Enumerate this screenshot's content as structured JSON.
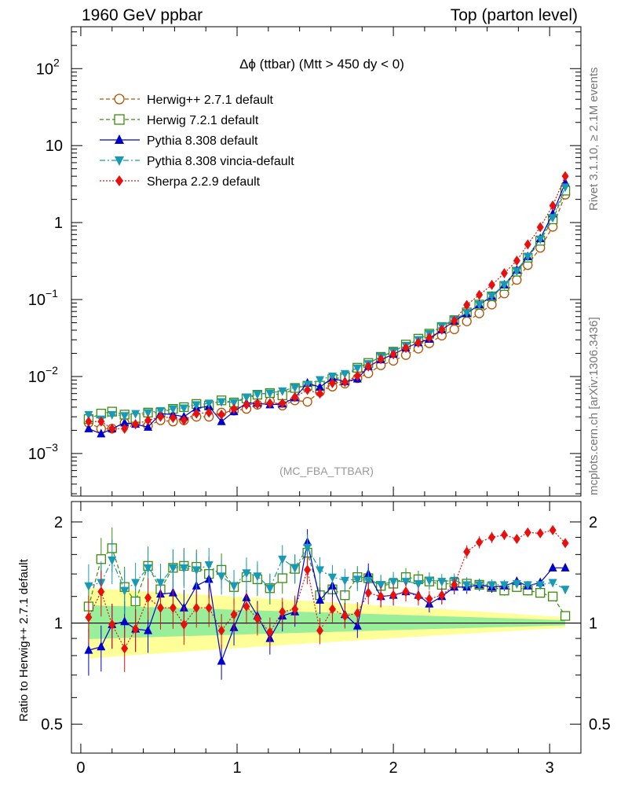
{
  "header": {
    "left": "1960 GeV ppbar",
    "right": "Top (parton level)"
  },
  "side_labels": {
    "rivet": "Rivet 3.1.10, ≥ 2.1M events",
    "mcplots": "mcplots.cern.ch [arXiv:1306.3436]"
  },
  "chart_data": [
    {
      "type": "scatter",
      "title": "Δϕ (ttbar) (Mtt > 450 dy < 0)",
      "watermark": "(MC_FBA_TTBAR)",
      "yscale": "log",
      "xlim": [
        -0.06,
        3.2
      ],
      "ylim": [
        0.00028,
        350
      ],
      "x_ticks": [
        0,
        1,
        2,
        3
      ],
      "y_ticks": [
        {
          "value": 0.001,
          "label": "10",
          "exp": "−3"
        },
        {
          "value": 0.01,
          "label": "10",
          "exp": "−2"
        },
        {
          "value": 0.1,
          "label": "10",
          "exp": "−1"
        },
        {
          "value": 1,
          "label": "1",
          "exp": ""
        },
        {
          "value": 10,
          "label": "10",
          "exp": ""
        },
        {
          "value": 100,
          "label": "10",
          "exp": "2"
        }
      ],
      "legend_position": "top-left",
      "x": [
        0.05,
        0.13,
        0.2,
        0.28,
        0.35,
        0.43,
        0.51,
        0.59,
        0.66,
        0.74,
        0.82,
        0.9,
        0.98,
        1.06,
        1.13,
        1.21,
        1.29,
        1.37,
        1.45,
        1.53,
        1.61,
        1.69,
        1.77,
        1.84,
        1.92,
        2.0,
        2.08,
        2.16,
        2.23,
        2.31,
        2.39,
        2.47,
        2.55,
        2.63,
        2.71,
        2.79,
        2.86,
        2.94,
        3.02,
        3.1
      ],
      "series": [
        {
          "name": "Herwig++ 2.7.1 default",
          "color": "#b35000",
          "marker": "circle-open",
          "line": "dashed",
          "values": [
            0.0025,
            0.0021,
            0.0021,
            0.0025,
            0.0025,
            0.0023,
            0.0027,
            0.0026,
            0.0027,
            0.003,
            0.003,
            0.0034,
            0.0036,
            0.0038,
            0.0043,
            0.0048,
            0.0042,
            0.0049,
            0.0047,
            0.0063,
            0.0074,
            0.0081,
            0.0095,
            0.011,
            0.014,
            0.016,
            0.019,
            0.023,
            0.027,
            0.034,
            0.041,
            0.052,
            0.066,
            0.086,
            0.12,
            0.18,
            0.28,
            0.47,
            0.88,
            2.3
          ]
        },
        {
          "name": "Herwig 7.2.1 default",
          "color": "#3c8c0c",
          "marker": "square-open",
          "line": "dashed",
          "values": [
            0.0028,
            0.0033,
            0.0035,
            0.0032,
            0.0029,
            0.0034,
            0.0034,
            0.0038,
            0.004,
            0.0044,
            0.0042,
            0.0049,
            0.0046,
            0.0052,
            0.0058,
            0.0061,
            0.0057,
            0.0071,
            0.0076,
            0.0076,
            0.0093,
            0.0098,
            0.013,
            0.015,
            0.018,
            0.021,
            0.026,
            0.031,
            0.036,
            0.044,
            0.054,
            0.068,
            0.086,
            0.11,
            0.15,
            0.23,
            0.35,
            0.58,
            1.1,
            2.6
          ]
        },
        {
          "name": "Pythia 8.308 default",
          "color": "#0000cc",
          "marker": "triangle-up",
          "line": "solid",
          "values": [
            0.0021,
            0.0018,
            0.0021,
            0.0025,
            0.0024,
            0.0022,
            0.0033,
            0.0032,
            0.003,
            0.0039,
            0.0041,
            0.0026,
            0.0035,
            0.0045,
            0.0045,
            0.0043,
            0.0044,
            0.0053,
            0.0082,
            0.0073,
            0.0095,
            0.0086,
            0.0093,
            0.0135,
            0.0165,
            0.0195,
            0.0235,
            0.0275,
            0.0305,
            0.0405,
            0.0525,
            0.066,
            0.086,
            0.11,
            0.155,
            0.24,
            0.36,
            0.62,
            1.3,
            3.3
          ]
        },
        {
          "name": "Pythia 8.308 vincia-default",
          "color": "#1899b4",
          "marker": "triangle-down",
          "line": "dashdot",
          "values": [
            0.0032,
            0.0028,
            0.0032,
            0.0031,
            0.0033,
            0.0034,
            0.0036,
            0.0038,
            0.0039,
            0.0043,
            0.0045,
            0.0047,
            0.0046,
            0.0054,
            0.0059,
            0.0061,
            0.0065,
            0.0072,
            0.0079,
            0.0091,
            0.0101,
            0.0109,
            0.0129,
            0.0147,
            0.0182,
            0.0212,
            0.0253,
            0.0302,
            0.0361,
            0.0452,
            0.0553,
            0.0676,
            0.0861,
            0.112,
            0.156,
            0.235,
            0.365,
            0.61,
            1.16,
            2.9
          ]
        },
        {
          "name": "Sherpa 2.2.9 default",
          "color": "#e8100e",
          "marker": "diamond",
          "line": "dotted",
          "values": [
            0.0026,
            0.0026,
            0.0021,
            0.0021,
            0.0024,
            0.0027,
            0.003,
            0.0029,
            0.0027,
            0.0033,
            0.0034,
            0.0032,
            0.0038,
            0.0043,
            0.0044,
            0.0045,
            0.0045,
            0.0054,
            0.0067,
            0.006,
            0.0082,
            0.0085,
            0.0102,
            0.0135,
            0.0168,
            0.0194,
            0.0235,
            0.0276,
            0.0319,
            0.0406,
            0.053,
            0.085,
            0.115,
            0.155,
            0.22,
            0.32,
            0.52,
            0.87,
            1.66,
            4.0
          ]
        }
      ]
    },
    {
      "type": "scatter",
      "ylabel": "Ratio to Herwig++ 2.7.1 default",
      "yscale": "log",
      "xlim": [
        -0.06,
        3.2
      ],
      "ylim": [
        0.41,
        2.3
      ],
      "x_ticks": [
        0,
        1,
        2,
        3
      ],
      "y_ticks": [
        0.5,
        1,
        2
      ],
      "x": [
        0.05,
        0.13,
        0.2,
        0.28,
        0.35,
        0.43,
        0.51,
        0.59,
        0.66,
        0.74,
        0.82,
        0.9,
        0.98,
        1.06,
        1.13,
        1.21,
        1.29,
        1.37,
        1.45,
        1.53,
        1.61,
        1.69,
        1.77,
        1.84,
        1.92,
        2.0,
        2.08,
        2.16,
        2.23,
        2.31,
        2.39,
        2.47,
        2.55,
        2.63,
        2.71,
        2.79,
        2.86,
        2.94,
        3.02,
        3.1
      ],
      "series": [
        {
          "name": "Herwig 7.2.1 default",
          "color": "#3c8c0c",
          "values": [
            1.12,
            1.55,
            1.67,
            1.28,
            1.16,
            1.48,
            1.26,
            1.46,
            1.48,
            1.47,
            1.4,
            1.44,
            1.28,
            1.37,
            1.35,
            1.27,
            1.36,
            1.45,
            1.62,
            1.21,
            1.26,
            1.21,
            1.37,
            1.36,
            1.29,
            1.31,
            1.37,
            1.35,
            1.33,
            1.3,
            1.32,
            1.31,
            1.3,
            1.28,
            1.25,
            1.28,
            1.25,
            1.23,
            1.2,
            1.05
          ]
        },
        {
          "name": "Pythia 8.308 default",
          "color": "#0000cc",
          "values": [
            0.83,
            0.85,
            0.99,
            1.01,
            0.96,
            0.95,
            1.22,
            1.23,
            1.11,
            1.29,
            1.35,
            0.77,
            0.97,
            1.19,
            1.05,
            0.9,
            1.05,
            1.08,
            1.74,
            1.17,
            1.29,
            1.06,
            0.98,
            1.4,
            1.2,
            1.21,
            1.24,
            1.21,
            1.14,
            1.2,
            1.28,
            1.28,
            1.3,
            1.28,
            1.29,
            1.33,
            1.29,
            1.32,
            1.46,
            1.46
          ]
        },
        {
          "name": "Pythia 8.308 vincia-default",
          "color": "#1899b4",
          "values": [
            1.29,
            1.32,
            1.54,
            1.25,
            1.32,
            1.46,
            1.32,
            1.46,
            1.46,
            1.44,
            1.49,
            1.38,
            1.29,
            1.41,
            1.38,
            1.27,
            1.55,
            1.46,
            1.68,
            1.44,
            1.37,
            1.34,
            1.35,
            1.34,
            1.3,
            1.33,
            1.33,
            1.31,
            1.34,
            1.33,
            1.34,
            1.3,
            1.3,
            1.3,
            1.3,
            1.31,
            1.3,
            1.3,
            1.32,
            1.26
          ]
        },
        {
          "name": "Sherpa 2.2.9 default",
          "color": "#e8100e",
          "values": [
            1.04,
            1.24,
            0.99,
            0.84,
            0.96,
            1.19,
            1.11,
            1.11,
            0.99,
            1.11,
            1.11,
            0.95,
            1.06,
            1.12,
            1.03,
            0.94,
            1.08,
            1.1,
            1.44,
            0.95,
            1.1,
            1.05,
            1.07,
            1.23,
            1.2,
            1.21,
            1.24,
            1.2,
            1.18,
            1.21,
            1.3,
            1.63,
            1.74,
            1.8,
            1.83,
            1.78,
            1.86,
            1.85,
            1.89,
            1.73
          ]
        }
      ]
    }
  ]
}
